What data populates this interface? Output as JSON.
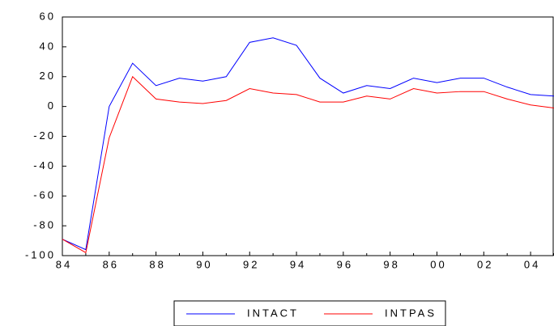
{
  "chart_data": {
    "type": "line",
    "categories": [
      "84",
      null,
      "86",
      null,
      "88",
      null,
      "90",
      null,
      "92",
      null,
      "94",
      null,
      "96",
      null,
      "98",
      null,
      "00",
      null,
      "02",
      null,
      "04",
      null
    ],
    "series": [
      {
        "name": "INTACT",
        "color": "#0000ff",
        "values": [
          -89,
          -96,
          0,
          29,
          14,
          19,
          17,
          20,
          43,
          46,
          41,
          19,
          9,
          14,
          12,
          19,
          16,
          19,
          19,
          13,
          8,
          7
        ]
      },
      {
        "name": "INTPAS",
        "color": "#ff0000",
        "values": [
          -89,
          -98,
          -21,
          20,
          5,
          3,
          2,
          4,
          12,
          9,
          8,
          3,
          3,
          7,
          5,
          12,
          9,
          10,
          10,
          5,
          1,
          -1
        ]
      }
    ],
    "ylim": [
      -100,
      60
    ],
    "yticks": [
      -100,
      -80,
      -60,
      -40,
      -20,
      0,
      20,
      40,
      60
    ]
  }
}
